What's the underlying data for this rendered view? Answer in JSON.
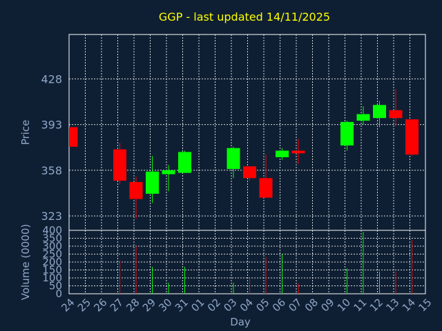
{
  "chart_data": {
    "type": "candlestick",
    "title": "GGP - last updated 14/11/2025",
    "xlabel": "Day",
    "price_ylabel": "Price",
    "volume_ylabel": "Volume (0000)",
    "x_ticks": [
      "24",
      "25",
      "26",
      "27",
      "28",
      "29",
      "30",
      "31",
      "01",
      "02",
      "03",
      "04",
      "05",
      "06",
      "07",
      "08",
      "09",
      "10",
      "11",
      "12",
      "13",
      "14",
      "15"
    ],
    "price_ticks": [
      323,
      358,
      393,
      428
    ],
    "price_ylim": [
      312,
      462
    ],
    "volume_ticks": [
      0,
      50,
      100,
      150,
      200,
      250,
      300,
      350,
      400
    ],
    "volume_ylim": [
      0,
      400
    ],
    "grid": true,
    "colors": {
      "up": "#00ff00",
      "down": "#ff0000",
      "title": "#ffff00",
      "axis": "#8fa8c8",
      "background": "#0f1f33",
      "grid": "#ffffff"
    },
    "candles": [
      {
        "day": "24",
        "open": 391,
        "high": 391,
        "low": 376,
        "close": 376,
        "volume": 0
      },
      {
        "day": "27",
        "open": 374,
        "high": 379,
        "low": 347,
        "close": 350,
        "volume": 210
      },
      {
        "day": "28",
        "open": 349,
        "high": 353,
        "low": 321,
        "close": 336,
        "volume": 300
      },
      {
        "day": "29",
        "open": 340,
        "high": 369,
        "low": 333,
        "close": 357,
        "volume": 170
      },
      {
        "day": "30",
        "open": 355,
        "high": 362,
        "low": 342,
        "close": 358,
        "volume": 70
      },
      {
        "day": "31",
        "open": 356,
        "high": 373,
        "low": 356,
        "close": 372,
        "volume": 170
      },
      {
        "day": "03",
        "open": 359,
        "high": 376,
        "low": 352,
        "close": 375,
        "volume": 70
      },
      {
        "day": "04",
        "open": 361,
        "high": 361,
        "low": 350,
        "close": 352,
        "volume": 100
      },
      {
        "day": "05",
        "open": 352,
        "high": 370,
        "low": 337,
        "close": 337,
        "volume": 230
      },
      {
        "day": "06",
        "open": 368,
        "high": 375,
        "low": 366,
        "close": 373,
        "volume": 250
      },
      {
        "day": "07",
        "open": 373,
        "high": 382,
        "low": 363,
        "close": 371,
        "volume": 65
      },
      {
        "day": "10",
        "open": 377,
        "high": 396,
        "low": 373,
        "close": 395,
        "volume": 160
      },
      {
        "day": "11",
        "open": 396,
        "high": 407,
        "low": 393,
        "close": 401,
        "volume": 390
      },
      {
        "day": "12",
        "open": 398,
        "high": 411,
        "low": 391,
        "close": 408,
        "volume": 140
      },
      {
        "day": "13",
        "open": 404,
        "high": 420,
        "low": 392,
        "close": 398,
        "volume": 140
      },
      {
        "day": "14",
        "open": 397,
        "high": 397,
        "low": 369,
        "close": 370,
        "volume": 340
      }
    ]
  }
}
